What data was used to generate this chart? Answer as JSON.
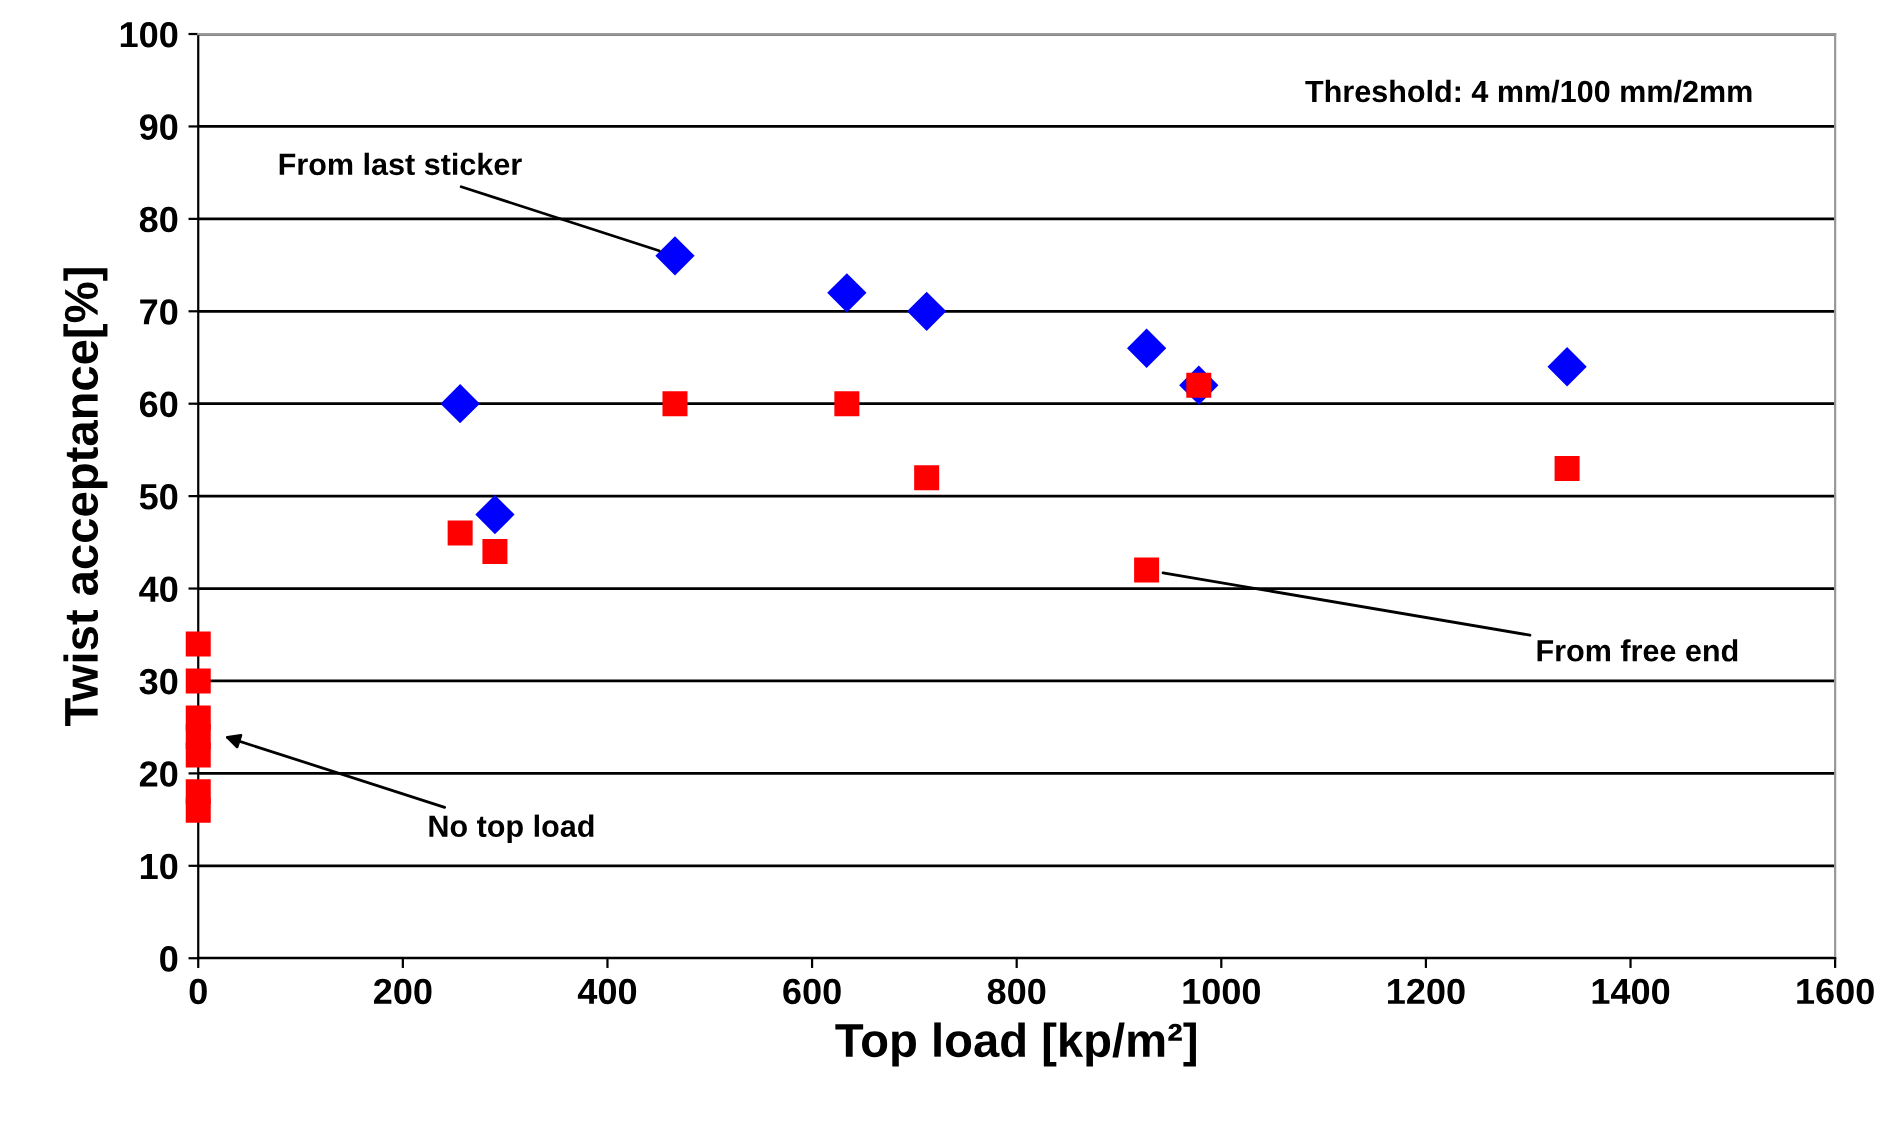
{
  "chart_data": {
    "type": "scatter",
    "xlabel": "Top load [kp/m²]",
    "ylabel": "Twist acceptance[%]",
    "xlim": [
      0,
      1600
    ],
    "xticks": [
      0,
      200,
      400,
      600,
      800,
      1000,
      1200,
      1400,
      1600
    ],
    "ylim": [
      0,
      100
    ],
    "yticks": [
      0,
      10,
      20,
      30,
      40,
      50,
      60,
      70,
      80,
      90,
      100
    ],
    "grid": "y",
    "legend": false,
    "series": [
      {
        "color": "#0000ff",
        "marker": "diamond",
        "x": [
          256,
          290,
          466,
          634,
          712,
          927,
          978,
          1338
        ],
        "values": [
          60,
          48,
          76,
          72,
          70,
          66,
          62,
          64
        ]
      },
      {
        "color": "#ff0000",
        "marker": "square",
        "x": [
          0,
          0,
          0,
          0,
          0,
          0,
          0,
          256,
          290,
          466,
          634,
          712,
          927,
          978,
          1338
        ],
        "values": [
          34,
          30,
          26,
          24,
          22,
          18,
          16,
          46,
          44,
          60,
          60,
          52,
          42,
          62,
          53
        ]
      }
    ],
    "annotations": [
      "Threshold: 4 mm/100 mm/2mm",
      {
        "text": "From last sticker",
        "x": 466,
        "y": 76
      },
      {
        "text": "From free end",
        "x": 927,
        "y": 42
      },
      "No top load"
    ]
  }
}
